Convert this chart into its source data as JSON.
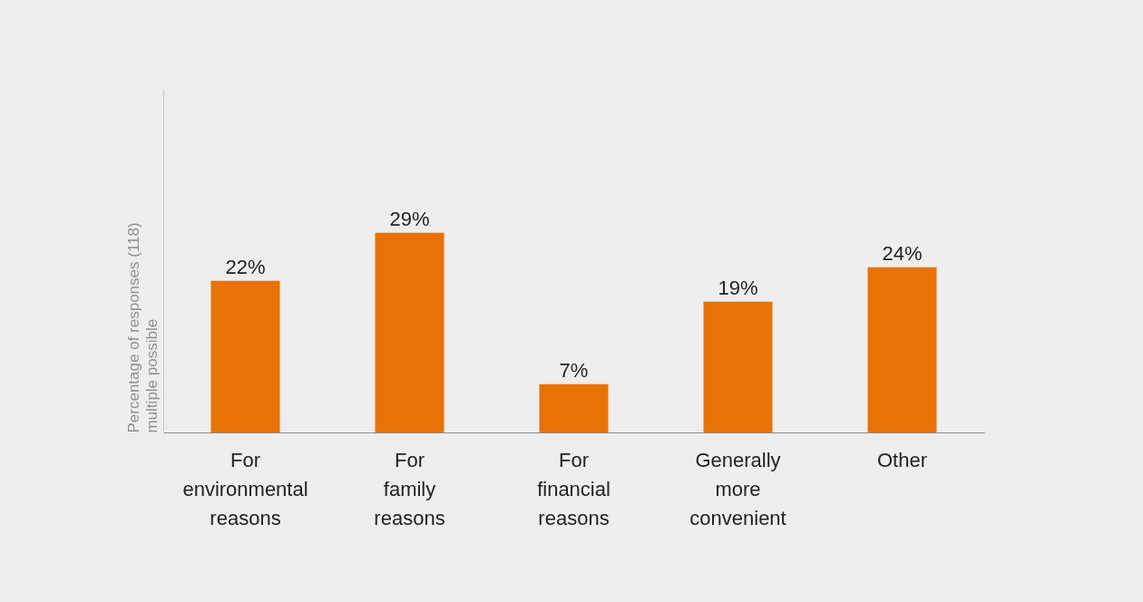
{
  "chart_data": {
    "type": "bar",
    "ylabel": "Percentage of responses (118)\nmultiple possible",
    "categories": [
      "For environmental reasons",
      "For family reasons",
      "For financial reasons",
      "Generally more convenient",
      "Other"
    ],
    "values": [
      22,
      29,
      7,
      19,
      24
    ],
    "value_labels": [
      "22%",
      "29%",
      "7%",
      "19%",
      "24%"
    ],
    "color": "#e87206"
  }
}
